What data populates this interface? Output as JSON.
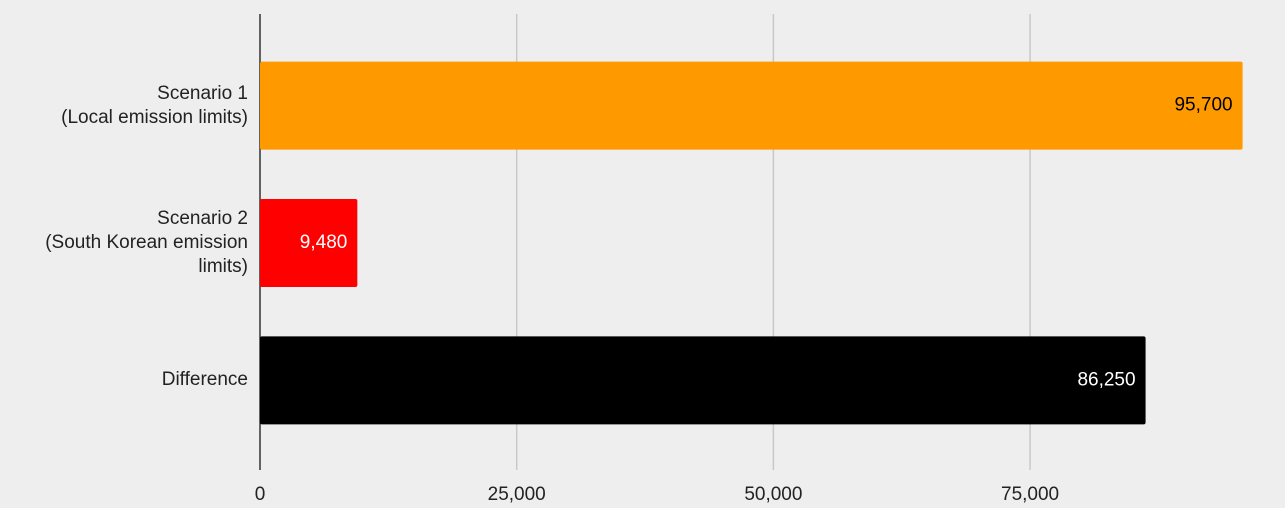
{
  "chart_data": {
    "type": "hbar",
    "categories": [
      "Scenario 1\n(Local emission limits)",
      "Scenario 2\n(South Korean emission\nlimits)",
      "Difference"
    ],
    "values": [
      95700,
      9480,
      86250
    ],
    "value_labels": [
      "95,700",
      "9,480",
      "86,250"
    ],
    "colors": [
      "#ff9900",
      "#ff0000",
      "#000000"
    ],
    "xlim": [
      0,
      95700
    ],
    "xticks": [
      0,
      {
        "value": 25000,
        "label": "25,000"
      },
      {
        "value": 50000,
        "label": "50,000"
      },
      {
        "value": 75000,
        "label": "75,000"
      }
    ],
    "grid": true
  }
}
